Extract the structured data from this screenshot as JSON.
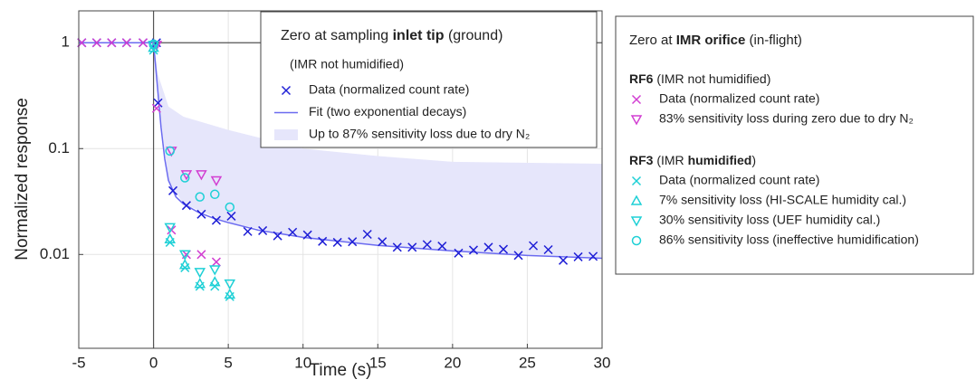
{
  "chart_data": {
    "type": "scatter",
    "x_label": "Time (s)",
    "y_label": "Normalized response",
    "xlim": [
      -5,
      30
    ],
    "ylim": [
      0.0013,
      2
    ],
    "log_y": true,
    "grid": true,
    "xticks": [
      -5,
      0,
      5,
      10,
      15,
      20,
      25,
      30
    ],
    "yticks": [
      0.01,
      0.1,
      1
    ],
    "ref_x": 0,
    "ref_y": 1,
    "groups": [
      {
        "title_parts": [
          "Zero at sampling ",
          "inlet tip",
          " (ground)"
        ],
        "subtitle": "(IMR not humidified)",
        "series": [
          {
            "name": "Data (normalized count rate)",
            "marker": "x",
            "color": "#1f1fd6",
            "x": [
              -4.8,
              -3.8,
              -2.8,
              -1.8,
              -0.7,
              0.2,
              0.3,
              1.3,
              2.2,
              3.2,
              4.2,
              5.2,
              6.3,
              7.3,
              8.3,
              9.3,
              10.3,
              11.3,
              12.3,
              13.3,
              14.3,
              15.3,
              16.3,
              17.3,
              18.3,
              19.3,
              20.4,
              21.4,
              22.4,
              23.4,
              24.4,
              25.4,
              26.4,
              27.4,
              28.4,
              29.4
            ],
            "values": [
              1,
              1,
              1,
              1,
              1,
              1,
              0.27,
              0.04,
              0.029,
              0.024,
              0.021,
              0.023,
              0.0165,
              0.0168,
              0.015,
              0.0162,
              0.0153,
              0.0133,
              0.013,
              0.0132,
              0.0155,
              0.0132,
              0.0117,
              0.0117,
              0.0124,
              0.012,
              0.0103,
              0.011,
              0.0117,
              0.0112,
              0.0098,
              0.0121,
              0.0111,
              0.0088,
              0.0095,
              0.0096
            ]
          },
          {
            "name": "Fit (two exponential decays)",
            "marker": "line",
            "color": "#6b6bf0",
            "x": [
              -5,
              0,
              0.25,
              0.5,
              0.75,
              1,
              1.5,
              2,
              3,
              4,
              5,
              7,
              10,
              15,
              20,
              25,
              30
            ],
            "values": [
              1,
              1,
              0.4,
              0.16,
              0.08,
              0.05,
              0.035,
              0.03,
              0.025,
              0.022,
              0.02,
              0.017,
              0.0145,
              0.0122,
              0.0108,
              0.0098,
              0.0092
            ]
          },
          {
            "name": "Up to 87% sensitivity loss due to dry N₂",
            "marker": "area",
            "color": "#e6e6fb",
            "x": [
              0,
              0.3,
              1,
              2,
              5,
              10,
              15,
              20,
              30
            ],
            "values": [
              1,
              0.5,
              0.25,
              0.2,
              0.15,
              0.1,
              0.085,
              0.075,
              0.072
            ],
            "lower": [
              1,
              0.3,
              0.05,
              0.03,
              0.02,
              0.0145,
              0.0122,
              0.0108,
              0.0092
            ]
          }
        ]
      },
      {
        "title_parts": [
          "Zero at ",
          "IMR orifice",
          " (in-flight)"
        ],
        "subgroups": [
          {
            "label_parts": [
              "RF6",
              " (IMR not humidified)"
            ],
            "series": [
              {
                "name": "Data (normalized count rate)",
                "marker": "x",
                "color": "#d23fd2",
                "x": [
                  -4.8,
                  -3.8,
                  -2.8,
                  -1.8,
                  -0.7,
                  0.2,
                  1.2,
                  2.2,
                  3.2,
                  4.2
                ],
                "values": [
                  1,
                  1,
                  1,
                  1,
                  1,
                  0.24,
                  0.017,
                  0.01,
                  0.01,
                  0.0085
                ]
              },
              {
                "name": "83% sensitivity loss during zero due to dry N₂",
                "marker": "tri-down",
                "color": "#d23fd2",
                "x": [
                  0.2,
                  1.2,
                  2.2,
                  3.2,
                  4.2
                ],
                "values": [
                  0.95,
                  0.095,
                  0.057,
                  0.057,
                  0.05
                ]
              }
            ]
          },
          {
            "label_parts": [
              "RF3",
              " (IMR ",
              "humidified",
              ")"
            ],
            "series": [
              {
                "name": "Data (normalized count rate)",
                "marker": "x",
                "color": "#1ed0d6",
                "x": [
                  0,
                  1.1,
                  2.1,
                  3.1,
                  4.1,
                  5.1
                ],
                "values": [
                  0.85,
                  0.013,
                  0.0075,
                  0.005,
                  0.005,
                  0.004
                ]
              },
              {
                "name": "7% sensitivity loss (HI-SCALE humidity cal.)",
                "marker": "tri-up",
                "color": "#1ed0d6",
                "x": [
                  0,
                  1.1,
                  2.1,
                  3.1,
                  4.1,
                  5.1
                ],
                "values": [
                  0.9,
                  0.014,
                  0.008,
                  0.0053,
                  0.0055,
                  0.0042
                ]
              },
              {
                "name": "30% sensitivity loss (UEF humidity cal.)",
                "marker": "tri-down",
                "color": "#1ed0d6",
                "x": [
                  0,
                  1.1,
                  2.1,
                  3.1,
                  4.1,
                  5.1
                ],
                "values": [
                  0.95,
                  0.018,
                  0.01,
                  0.0068,
                  0.0072,
                  0.0053
                ]
              },
              {
                "name": "86% sensitivity loss (ineffective humidification)",
                "marker": "circle",
                "color": "#1ed0d6",
                "x": [
                  0,
                  1.1,
                  2.1,
                  3.1,
                  4.1,
                  5.1
                ],
                "values": [
                  0.97,
                  0.095,
                  0.053,
                  0.035,
                  0.037,
                  0.028
                ]
              }
            ]
          }
        ]
      }
    ]
  }
}
